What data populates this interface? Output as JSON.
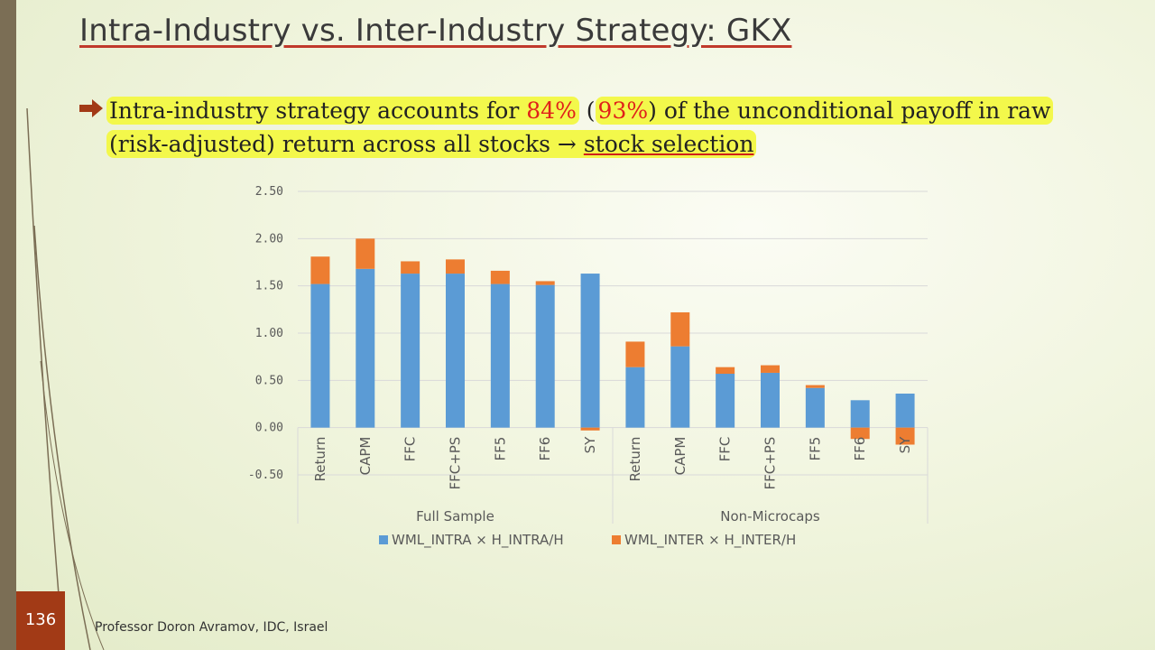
{
  "slide": {
    "title": "Intra-Industry vs. Inter-Industry Strategy: GKX",
    "bullet": {
      "part1": "Intra-industry strategy accounts for ",
      "pct1": "84%",
      "part2": " (",
      "pct2": "93%",
      "part3": ") of the unconditional payoff in raw (risk-adjusted) return across all stocks → ",
      "link": "stock selection"
    },
    "page_number": "136",
    "footer": "Professor Doron Avramov, IDC, Israel"
  },
  "colors": {
    "series_intra": "#5b9bd5",
    "series_inter": "#ed7d31",
    "gridline": "#d9d9d9",
    "highlight": "#f3f84b",
    "accent_red": "#e0201a"
  },
  "chart_data": {
    "type": "bar",
    "stacked": true,
    "ylim": [
      -0.5,
      2.5
    ],
    "yticks": [
      "2.50",
      "2.00",
      "1.50",
      "1.00",
      "0.50",
      "0.00",
      "-0.50"
    ],
    "grid": true,
    "legend_position": "bottom",
    "groups": [
      {
        "name": "Full Sample",
        "categories": [
          "Return",
          "CAPM",
          "FFC",
          "FFC+PS",
          "FF5",
          "FF6",
          "SY"
        ]
      },
      {
        "name": "Non-Microcaps",
        "categories": [
          "Return",
          "CAPM",
          "FFC",
          "FFC+PS",
          "FF5",
          "FF6",
          "SY"
        ]
      }
    ],
    "series": [
      {
        "name": "WML_INTRA × H_INTRA/H",
        "values": [
          1.52,
          1.68,
          1.63,
          1.63,
          1.52,
          1.51,
          1.63,
          0.64,
          0.86,
          0.57,
          0.58,
          0.42,
          0.29,
          0.36
        ]
      },
      {
        "name": "WML_INTER × H_INTER/H",
        "values": [
          0.29,
          0.32,
          0.13,
          0.15,
          0.14,
          0.04,
          -0.03,
          0.27,
          0.36,
          0.07,
          0.08,
          0.03,
          -0.12,
          -0.18
        ]
      }
    ]
  }
}
